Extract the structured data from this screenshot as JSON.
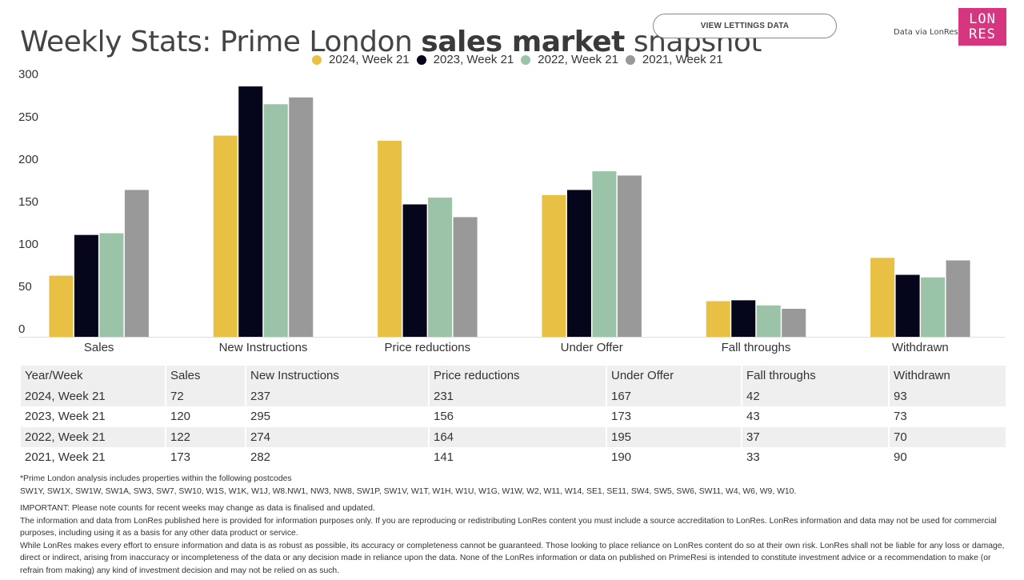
{
  "header": {
    "title_pre": "Weekly Stats: Prime London ",
    "title_bold": "sales market",
    "title_post": " snapshot",
    "button_label": "VIEW LETTINGS DATA",
    "data_via": "Data via LonRes",
    "logo_line1": "LON",
    "logo_line2": "RES",
    "brand_color": "#d6357f"
  },
  "chart_data": {
    "type": "bar",
    "title": "Weekly Stats: Prime London sales market snapshot",
    "xlabel": "",
    "ylabel": "",
    "ylim": [
      0,
      300
    ],
    "yticks": [
      "0",
      "50",
      "100",
      "150",
      "200",
      "250",
      "300"
    ],
    "grid": false,
    "legend_position": "top-center",
    "categories": [
      "Sales",
      "New Instructions",
      "Price reductions",
      "Under Offer",
      "Fall throughs",
      "Withdrawn"
    ],
    "series": [
      {
        "name": "2024, Week 21",
        "color": "#e8c144",
        "values": [
          72,
          237,
          231,
          167,
          42,
          93
        ]
      },
      {
        "name": "2023, Week 21",
        "color": "#05051c",
        "values": [
          120,
          295,
          156,
          173,
          43,
          73
        ]
      },
      {
        "name": "2022, Week 21",
        "color": "#9bc3a8",
        "values": [
          122,
          274,
          164,
          195,
          37,
          70
        ]
      },
      {
        "name": "2021, Week 21",
        "color": "#999999",
        "values": [
          173,
          282,
          141,
          190,
          33,
          90
        ]
      }
    ]
  },
  "table": {
    "headers": [
      "Year/Week",
      "Sales",
      "New Instructions",
      "Price reductions",
      "Under Offer",
      "Fall throughs",
      "Withdrawn"
    ],
    "rows": [
      [
        "2024, Week 21",
        "72",
        "237",
        "231",
        "167",
        "42",
        "93"
      ],
      [
        "2023, Week 21",
        "120",
        "295",
        "156",
        "173",
        "43",
        "73"
      ],
      [
        "2022, Week 21",
        "122",
        "274",
        "164",
        "195",
        "37",
        "70"
      ],
      [
        "2021, Week 21",
        "173",
        "282",
        "141",
        "190",
        "33",
        "90"
      ]
    ]
  },
  "notes": {
    "postcodes_intro": "*Prime London analysis includes properties within the following postcodes",
    "postcodes_list": "SW1Y, SW1X, SW1W, SW1A, SW3, SW7, SW10, W1S, W1K, W1J, W8.NW1, NW3, NW8, SW1P, SW1V, W1T, W1H, W1U, W1G, W1W, W2, W11, W14, SE1, SE11, SW4, SW5, SW6, SW11, W4, W6, W9, W10."
  },
  "disclaimer": {
    "important": "IMPORTANT: Please note counts for recent weeks may change as data is finalised and updated.",
    "para1": "The information and data from LonRes published here is provided for information purposes only. If you are reproducing or redistributing LonRes content you must include a source accreditation to LonRes. LonRes information and data may not be used for commercial purposes, including using it as a basis for any other data product or service.",
    "para2": "While LonRes makes every effort to ensure information and data is as robust as possible, its accuracy or completeness cannot be guaranteed. Those looking to place reliance on LonRes content do so at their own risk. LonRes shall not be liable for any loss or damage, direct or indirect, arising from inaccuracy or incompleteness of the data or any decision made in reliance upon the data. None of the LonRes information or data on published on PrimeResi is intended to constitute investment advice or a recommendation to make (or refrain from making) any kind of investment decision and may not be relied on as such."
  }
}
